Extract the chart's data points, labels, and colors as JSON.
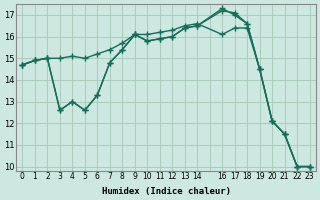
{
  "xlabel": "Humidex (Indice chaleur)",
  "bg_color": "#cce8e0",
  "grid_color": "#aaccbb",
  "line_color": "#1a6b5a",
  "ylim": [
    9.8,
    17.5
  ],
  "xlim": [
    -0.5,
    23.5
  ],
  "yticks": [
    10,
    11,
    12,
    13,
    14,
    15,
    16,
    17
  ],
  "xticks": [
    0,
    1,
    2,
    3,
    4,
    5,
    6,
    7,
    8,
    9,
    10,
    11,
    12,
    13,
    14,
    15,
    16,
    17,
    18,
    19,
    20,
    21,
    22,
    23
  ],
  "xtick_labels": [
    "0",
    "1",
    "2",
    "3",
    "4",
    "5",
    "6",
    "7",
    "8",
    "9",
    "10",
    "11",
    "12",
    "13",
    "14",
    "",
    "16",
    "17",
    "18",
    "19",
    "20",
    "21",
    "22",
    "23"
  ],
  "line1_x": [
    0,
    1,
    2,
    3,
    4,
    5,
    6,
    7,
    8,
    9,
    10,
    11,
    12,
    13,
    14,
    16,
    17,
    18,
    19,
    20,
    21,
    22,
    23
  ],
  "line1_y": [
    14.7,
    14.9,
    15.0,
    15.0,
    15.1,
    15.0,
    15.2,
    15.4,
    15.7,
    16.1,
    16.1,
    16.2,
    16.3,
    16.5,
    16.6,
    16.1,
    16.4,
    16.4,
    14.5,
    12.1,
    11.5,
    10.0,
    10.0
  ],
  "line2_x": [
    0,
    1,
    2,
    3,
    4,
    5,
    6,
    7,
    8,
    9,
    10,
    11,
    12,
    13,
    14,
    16,
    17,
    18,
    19,
    20,
    21,
    22,
    23
  ],
  "line2_y": [
    14.7,
    14.9,
    15.0,
    12.6,
    13.0,
    12.6,
    13.3,
    14.8,
    15.4,
    16.1,
    15.8,
    15.9,
    16.0,
    16.4,
    16.5,
    17.2,
    17.1,
    16.6,
    14.5,
    12.1,
    11.5,
    10.0,
    10.0
  ],
  "line3_x": [
    0,
    1,
    2,
    3,
    4,
    5,
    6,
    7,
    8,
    9,
    10,
    11,
    12,
    13,
    14,
    16,
    17,
    18,
    19,
    20,
    21,
    22,
    23
  ],
  "line3_y": [
    14.7,
    14.9,
    15.0,
    12.6,
    13.0,
    12.6,
    13.3,
    14.8,
    15.4,
    16.1,
    15.8,
    15.9,
    16.0,
    16.4,
    16.5,
    17.3,
    17.0,
    16.6,
    14.5,
    12.1,
    11.5,
    10.0,
    10.0
  ]
}
